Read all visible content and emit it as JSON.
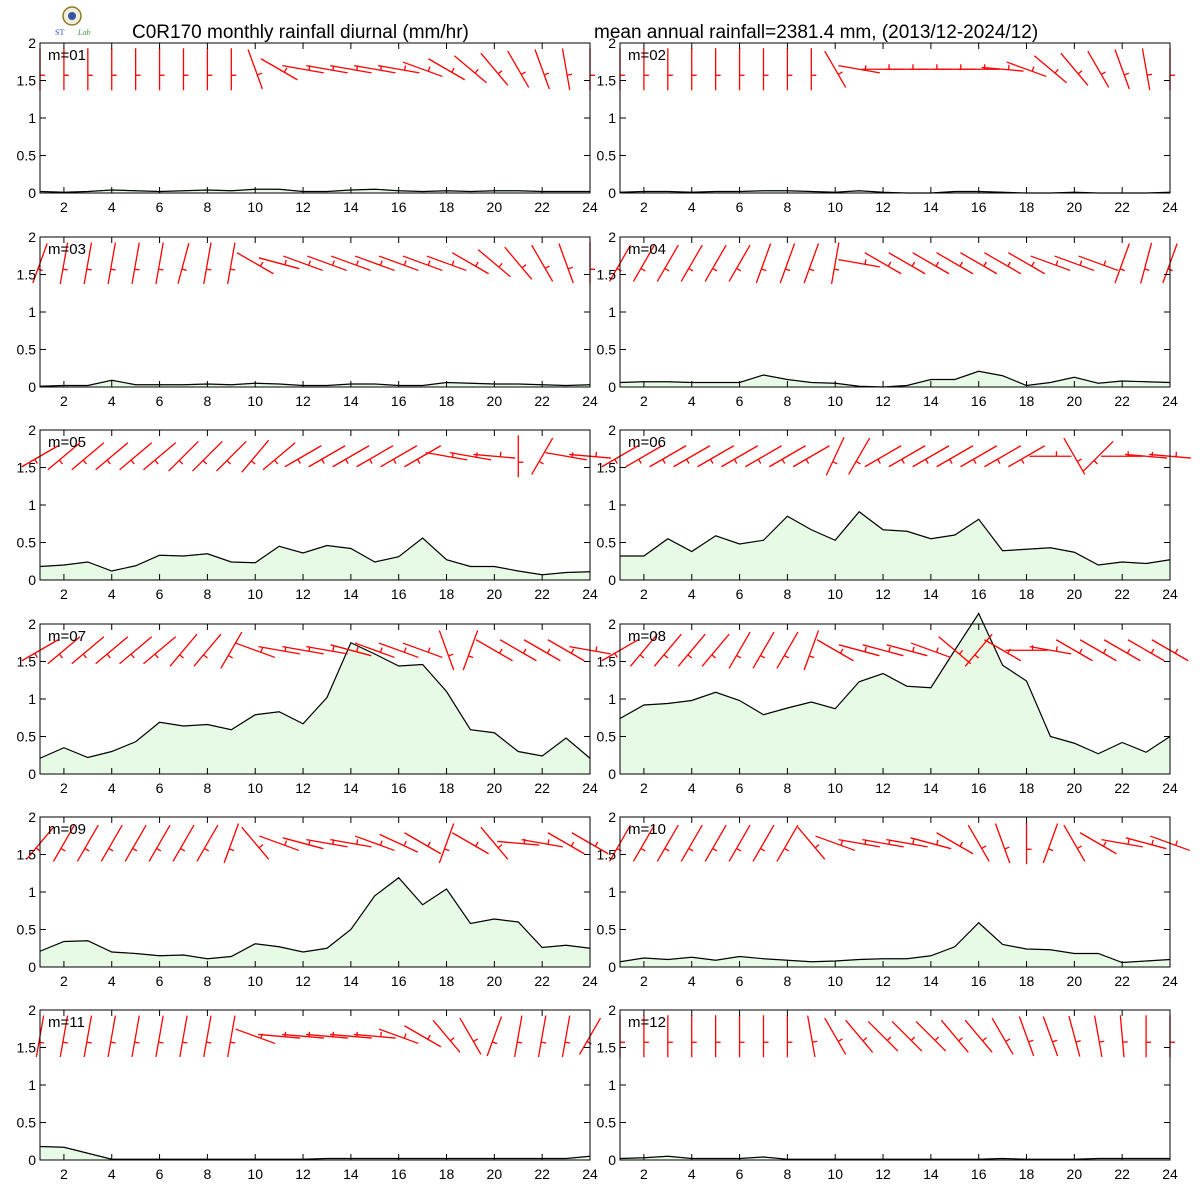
{
  "header": {
    "title_left": "C0R170 monthly rainfall diurnal (mm/hr)",
    "title_right": "mean annual rainfall=2381.4 mm, (2013/12-2024/12)",
    "logo_icon": "agency-seal-logo"
  },
  "colors": {
    "fill": "#e6fae6",
    "line": "#000000",
    "barb": "#ff0000"
  },
  "chart_data": [
    {
      "type": "area",
      "label": "m=01",
      "x": [
        1,
        2,
        3,
        4,
        5,
        6,
        7,
        8,
        9,
        10,
        11,
        12,
        13,
        14,
        15,
        16,
        17,
        18,
        19,
        20,
        21,
        22,
        23,
        24
      ],
      "ylim": [
        0,
        2
      ],
      "xlim": [
        1,
        24
      ],
      "xticks": [
        2,
        4,
        6,
        8,
        10,
        12,
        14,
        16,
        18,
        20,
        22,
        24
      ],
      "yticks": [
        0,
        0.5,
        1,
        1.5,
        2
      ],
      "values": [
        0.02,
        0.01,
        0.02,
        0.04,
        0.03,
        0.02,
        0.03,
        0.04,
        0.03,
        0.05,
        0.05,
        0.02,
        0.02,
        0.04,
        0.05,
        0.03,
        0.02,
        0.03,
        0.02,
        0.03,
        0.03,
        0.02,
        0.02,
        0.02
      ],
      "wind_dir": [
        360,
        360,
        360,
        360,
        360,
        360,
        360,
        360,
        360,
        340,
        300,
        280,
        280,
        280,
        280,
        280,
        290,
        300,
        310,
        320,
        330,
        340,
        350,
        360
      ]
    },
    {
      "type": "area",
      "label": "m=02",
      "x": [
        1,
        2,
        3,
        4,
        5,
        6,
        7,
        8,
        9,
        10,
        11,
        12,
        13,
        14,
        15,
        16,
        17,
        18,
        19,
        20,
        21,
        22,
        23,
        24
      ],
      "ylim": [
        0,
        2
      ],
      "xlim": [
        1,
        24
      ],
      "xticks": [
        2,
        4,
        6,
        8,
        10,
        12,
        14,
        16,
        18,
        20,
        22,
        24
      ],
      "yticks": [
        0,
        0.5,
        1,
        1.5,
        2
      ],
      "values": [
        0.01,
        0.02,
        0.02,
        0.01,
        0.02,
        0.02,
        0.03,
        0.03,
        0.02,
        0.01,
        0.03,
        0.01,
        0.0,
        0.0,
        0.02,
        0.02,
        0.01,
        0.0,
        0.0,
        0.01,
        0.0,
        0.0,
        0.0,
        0.01
      ],
      "wind_dir": [
        360,
        360,
        360,
        360,
        360,
        360,
        360,
        360,
        360,
        330,
        280,
        270,
        270,
        270,
        270,
        270,
        275,
        290,
        310,
        320,
        330,
        340,
        350,
        360
      ]
    },
    {
      "type": "area",
      "label": "m=03",
      "x": [
        1,
        2,
        3,
        4,
        5,
        6,
        7,
        8,
        9,
        10,
        11,
        12,
        13,
        14,
        15,
        16,
        17,
        18,
        19,
        20,
        21,
        22,
        23,
        24
      ],
      "ylim": [
        0,
        2
      ],
      "xlim": [
        1,
        24
      ],
      "xticks": [
        2,
        4,
        6,
        8,
        10,
        12,
        14,
        16,
        18,
        20,
        22,
        24
      ],
      "yticks": [
        0,
        0.5,
        1,
        1.5,
        2
      ],
      "values": [
        0.01,
        0.02,
        0.02,
        0.09,
        0.03,
        0.03,
        0.03,
        0.04,
        0.03,
        0.05,
        0.04,
        0.02,
        0.02,
        0.04,
        0.04,
        0.02,
        0.02,
        0.06,
        0.05,
        0.04,
        0.04,
        0.03,
        0.02,
        0.03
      ],
      "wind_dir": [
        20,
        10,
        10,
        10,
        10,
        10,
        15,
        10,
        10,
        300,
        285,
        290,
        290,
        290,
        290,
        290,
        290,
        290,
        300,
        310,
        320,
        330,
        340,
        360
      ]
    },
    {
      "type": "area",
      "label": "m=04",
      "x": [
        1,
        2,
        3,
        4,
        5,
        6,
        7,
        8,
        9,
        10,
        11,
        12,
        13,
        14,
        15,
        16,
        17,
        18,
        19,
        20,
        21,
        22,
        23,
        24
      ],
      "ylim": [
        0,
        2
      ],
      "xlim": [
        1,
        24
      ],
      "xticks": [
        2,
        4,
        6,
        8,
        10,
        12,
        14,
        16,
        18,
        20,
        22,
        24
      ],
      "yticks": [
        0,
        0.5,
        1,
        1.5,
        2
      ],
      "values": [
        0.06,
        0.07,
        0.07,
        0.06,
        0.06,
        0.06,
        0.16,
        0.1,
        0.06,
        0.05,
        0.01,
        0.0,
        0.02,
        0.1,
        0.1,
        0.21,
        0.15,
        0.02,
        0.06,
        0.13,
        0.05,
        0.08,
        0.07,
        0.06
      ],
      "wind_dir": [
        30,
        30,
        30,
        30,
        30,
        30,
        20,
        20,
        20,
        10,
        280,
        300,
        300,
        300,
        300,
        300,
        300,
        300,
        290,
        290,
        290,
        20,
        15,
        20
      ]
    },
    {
      "type": "area",
      "label": "m=05",
      "x": [
        1,
        2,
        3,
        4,
        5,
        6,
        7,
        8,
        9,
        10,
        11,
        12,
        13,
        14,
        15,
        16,
        17,
        18,
        19,
        20,
        21,
        22,
        23,
        24
      ],
      "ylim": [
        0,
        2
      ],
      "xlim": [
        1,
        24
      ],
      "xticks": [
        2,
        4,
        6,
        8,
        10,
        12,
        14,
        16,
        18,
        20,
        22,
        24
      ],
      "yticks": [
        0,
        0.5,
        1,
        1.5,
        2
      ],
      "values": [
        0.18,
        0.2,
        0.24,
        0.12,
        0.19,
        0.33,
        0.32,
        0.35,
        0.24,
        0.23,
        0.45,
        0.36,
        0.46,
        0.42,
        0.24,
        0.31,
        0.56,
        0.27,
        0.18,
        0.18,
        0.12,
        0.07,
        0.1,
        0.11
      ],
      "wind_dir": [
        60,
        50,
        50,
        50,
        50,
        50,
        45,
        45,
        45,
        40,
        50,
        60,
        60,
        60,
        60,
        60,
        60,
        280,
        280,
        275,
        0,
        30,
        280,
        275
      ]
    },
    {
      "type": "area",
      "label": "m=06",
      "x": [
        1,
        2,
        3,
        4,
        5,
        6,
        7,
        8,
        9,
        10,
        11,
        12,
        13,
        14,
        15,
        16,
        17,
        18,
        19,
        20,
        21,
        22,
        23,
        24
      ],
      "ylim": [
        0,
        2
      ],
      "xlim": [
        1,
        24
      ],
      "xticks": [
        2,
        4,
        6,
        8,
        10,
        12,
        14,
        16,
        18,
        20,
        22,
        24
      ],
      "yticks": [
        0,
        0.5,
        1,
        1.5,
        2
      ],
      "values": [
        0.32,
        0.32,
        0.55,
        0.38,
        0.59,
        0.48,
        0.53,
        0.85,
        0.67,
        0.53,
        0.91,
        0.67,
        0.65,
        0.55,
        0.6,
        0.81,
        0.39,
        0.41,
        0.43,
        0.37,
        0.2,
        0.24,
        0.22,
        0.27
      ],
      "wind_dir": [
        60,
        60,
        60,
        60,
        60,
        60,
        60,
        60,
        60,
        25,
        30,
        60,
        60,
        60,
        60,
        60,
        60,
        60,
        270,
        330,
        45,
        270,
        275,
        275
      ]
    },
    {
      "type": "area",
      "label": "m=07",
      "x": [
        1,
        2,
        3,
        4,
        5,
        6,
        7,
        8,
        9,
        10,
        11,
        12,
        13,
        14,
        15,
        16,
        17,
        18,
        19,
        20,
        21,
        22,
        23,
        24
      ],
      "ylim": [
        0,
        2
      ],
      "xlim": [
        1,
        24
      ],
      "xticks": [
        2,
        4,
        6,
        8,
        10,
        12,
        14,
        16,
        18,
        20,
        22,
        24
      ],
      "yticks": [
        0,
        0.5,
        1,
        1.5,
        2
      ],
      "values": [
        0.21,
        0.35,
        0.22,
        0.3,
        0.43,
        0.69,
        0.64,
        0.66,
        0.59,
        0.79,
        0.83,
        0.67,
        1.02,
        1.75,
        1.6,
        1.44,
        1.46,
        1.1,
        0.59,
        0.55,
        0.3,
        0.24,
        0.48,
        0.21
      ],
      "wind_dir": [
        60,
        50,
        50,
        50,
        50,
        50,
        40,
        40,
        30,
        290,
        280,
        280,
        280,
        285,
        290,
        290,
        290,
        340,
        20,
        300,
        300,
        300,
        300,
        280
      ]
    },
    {
      "type": "area",
      "label": "m=08",
      "x": [
        1,
        2,
        3,
        4,
        5,
        6,
        7,
        8,
        9,
        10,
        11,
        12,
        13,
        14,
        15,
        16,
        17,
        18,
        19,
        20,
        21,
        22,
        23,
        24
      ],
      "ylim": [
        0,
        2
      ],
      "xlim": [
        1,
        24
      ],
      "xticks": [
        2,
        4,
        6,
        8,
        10,
        12,
        14,
        16,
        18,
        20,
        22,
        24
      ],
      "yticks": [
        0,
        0.5,
        1,
        1.5,
        2
      ],
      "values": [
        0.74,
        0.92,
        0.94,
        0.98,
        1.09,
        0.98,
        0.79,
        0.88,
        0.96,
        0.87,
        1.23,
        1.34,
        1.17,
        1.15,
        1.65,
        2.14,
        1.45,
        1.24,
        0.5,
        0.41,
        0.27,
        0.42,
        0.29,
        0.5
      ],
      "wind_dir": [
        60,
        40,
        40,
        40,
        40,
        30,
        30,
        30,
        20,
        300,
        285,
        285,
        285,
        290,
        310,
        40,
        300,
        270,
        280,
        300,
        300,
        300,
        300,
        300
      ]
    },
    {
      "type": "area",
      "label": "m=09",
      "x": [
        1,
        2,
        3,
        4,
        5,
        6,
        7,
        8,
        9,
        10,
        11,
        12,
        13,
        14,
        15,
        16,
        17,
        18,
        19,
        20,
        21,
        22,
        23,
        24
      ],
      "ylim": [
        0,
        2
      ],
      "xlim": [
        1,
        24
      ],
      "xticks": [
        2,
        4,
        6,
        8,
        10,
        12,
        14,
        16,
        18,
        20,
        22,
        24
      ],
      "yticks": [
        0,
        0.5,
        1,
        1.5,
        2
      ],
      "values": [
        0.21,
        0.34,
        0.35,
        0.2,
        0.18,
        0.15,
        0.16,
        0.11,
        0.14,
        0.31,
        0.27,
        0.2,
        0.25,
        0.5,
        0.95,
        1.19,
        0.83,
        1.04,
        0.58,
        0.64,
        0.6,
        0.26,
        0.29,
        0.25
      ],
      "wind_dir": [
        40,
        30,
        30,
        30,
        30,
        30,
        30,
        30,
        20,
        320,
        290,
        285,
        280,
        280,
        290,
        295,
        300,
        20,
        300,
        320,
        275,
        280,
        300,
        300
      ]
    },
    {
      "type": "area",
      "label": "m=10",
      "x": [
        1,
        2,
        3,
        4,
        5,
        6,
        7,
        8,
        9,
        10,
        11,
        12,
        13,
        14,
        15,
        16,
        17,
        18,
        19,
        20,
        21,
        22,
        23,
        24
      ],
      "ylim": [
        0,
        2
      ],
      "xlim": [
        1,
        24
      ],
      "xticks": [
        2,
        4,
        6,
        8,
        10,
        12,
        14,
        16,
        18,
        20,
        22,
        24
      ],
      "yticks": [
        0,
        0.5,
        1,
        1.5,
        2
      ],
      "values": [
        0.07,
        0.12,
        0.1,
        0.13,
        0.09,
        0.14,
        0.11,
        0.09,
        0.07,
        0.08,
        0.1,
        0.11,
        0.11,
        0.15,
        0.27,
        0.59,
        0.3,
        0.24,
        0.23,
        0.18,
        0.18,
        0.06,
        0.08,
        0.1
      ],
      "wind_dir": [
        30,
        30,
        30,
        30,
        30,
        30,
        30,
        30,
        320,
        290,
        280,
        280,
        280,
        285,
        300,
        330,
        340,
        0,
        20,
        330,
        300,
        280,
        285,
        290
      ]
    },
    {
      "type": "area",
      "label": "m=11",
      "x": [
        1,
        2,
        3,
        4,
        5,
        6,
        7,
        8,
        9,
        10,
        11,
        12,
        13,
        14,
        15,
        16,
        17,
        18,
        19,
        20,
        21,
        22,
        23,
        24
      ],
      "ylim": [
        0,
        2
      ],
      "xlim": [
        1,
        24
      ],
      "xticks": [
        2,
        4,
        6,
        8,
        10,
        12,
        14,
        16,
        18,
        20,
        22,
        24
      ],
      "yticks": [
        0,
        0.5,
        1,
        1.5,
        2
      ],
      "values": [
        0.18,
        0.17,
        0.09,
        0.01,
        0.01,
        0.01,
        0.01,
        0.01,
        0.01,
        0.01,
        0.01,
        0.01,
        0.02,
        0.02,
        0.02,
        0.02,
        0.02,
        0.02,
        0.02,
        0.02,
        0.02,
        0.02,
        0.02,
        0.05
      ],
      "wind_dir": [
        10,
        10,
        10,
        10,
        10,
        10,
        10,
        10,
        10,
        290,
        275,
        275,
        275,
        275,
        275,
        290,
        300,
        320,
        330,
        20,
        10,
        10,
        10,
        30
      ]
    },
    {
      "type": "area",
      "label": "m=12",
      "x": [
        1,
        2,
        3,
        4,
        5,
        6,
        7,
        8,
        9,
        10,
        11,
        12,
        13,
        14,
        15,
        16,
        17,
        18,
        19,
        20,
        21,
        22,
        23,
        24
      ],
      "ylim": [
        0,
        2
      ],
      "xlim": [
        1,
        24
      ],
      "xticks": [
        2,
        4,
        6,
        8,
        10,
        12,
        14,
        16,
        18,
        20,
        22,
        24
      ],
      "yticks": [
        0,
        0.5,
        1,
        1.5,
        2
      ],
      "values": [
        0.02,
        0.03,
        0.05,
        0.02,
        0.02,
        0.02,
        0.04,
        0.01,
        0.01,
        0.01,
        0.01,
        0.01,
        0.01,
        0.01,
        0.01,
        0.01,
        0.02,
        0.01,
        0.01,
        0.01,
        0.02,
        0.02,
        0.02,
        0.02
      ],
      "wind_dir": [
        360,
        360,
        360,
        360,
        360,
        360,
        360,
        360,
        350,
        330,
        320,
        315,
        315,
        315,
        320,
        320,
        330,
        340,
        340,
        345,
        350,
        355,
        360,
        360
      ]
    }
  ]
}
